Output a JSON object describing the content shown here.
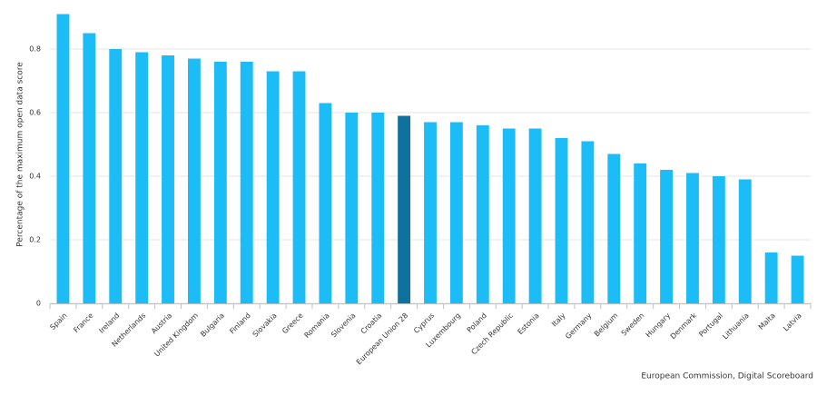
{
  "chart_data": {
    "type": "bar",
    "y_label": "Percentage of the maximum open data score",
    "source": "European Commission, Digital Scoreboard",
    "categories": [
      "Spain",
      "France",
      "Ireland",
      "Netherlands",
      "Austria",
      "United Kingdom",
      "Bulgaria",
      "Finland",
      "Slovakia",
      "Greece",
      "Romania",
      "Slovenia",
      "Croatia",
      "European Union 28",
      "Cyprus",
      "Luxembourg",
      "Poland",
      "Czech Republic",
      "Estonia",
      "Italy",
      "Germany",
      "Belgium",
      "Sweden",
      "Hungary",
      "Denmark",
      "Portugal",
      "Lithuania",
      "Malta",
      "Latvia"
    ],
    "values": [
      0.91,
      0.85,
      0.8,
      0.79,
      0.78,
      0.77,
      0.76,
      0.76,
      0.73,
      0.73,
      0.63,
      0.6,
      0.6,
      0.59,
      0.57,
      0.57,
      0.56,
      0.55,
      0.55,
      0.52,
      0.51,
      0.47,
      0.44,
      0.42,
      0.41,
      0.4,
      0.39,
      0.16,
      0.15
    ],
    "color": "#1cbdf7",
    "highlight": "European Union 28",
    "highlight_color": "#10719c",
    "ylim": [
      0,
      0.94
    ],
    "yticks": [
      0,
      0.2,
      0.4,
      0.6,
      0.8
    ],
    "grid": true
  }
}
